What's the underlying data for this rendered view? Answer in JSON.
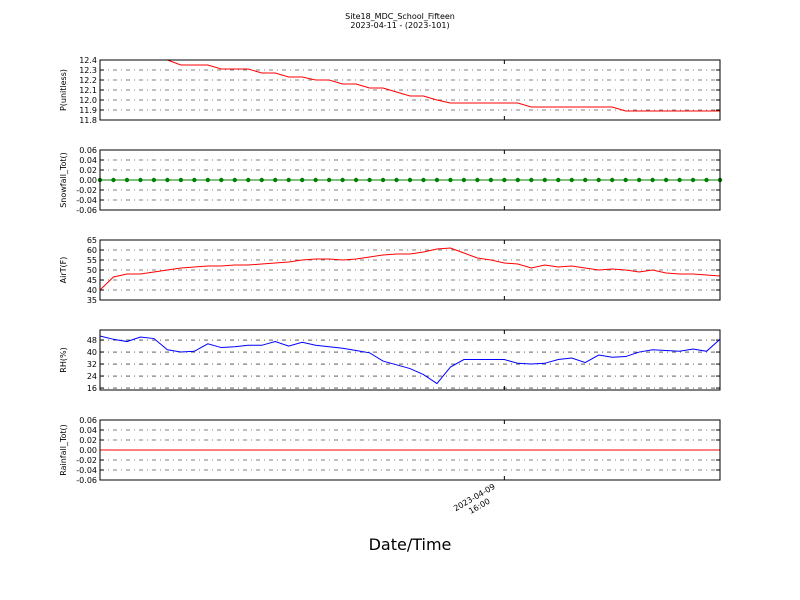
{
  "chart_data": [
    {
      "type": "line",
      "title": "Site18_MDC_School_Fifteen",
      "subtitle": "2023-04-11 - (2023-101)",
      "ylabel": "P(unitless)",
      "color": "#ff0000",
      "values": [
        12.4,
        12.4,
        12.4,
        12.4,
        12.4,
        12.4,
        12.35,
        12.35,
        12.35,
        12.31,
        12.31,
        12.31,
        12.27,
        12.27,
        12.23,
        12.23,
        12.2,
        12.2,
        12.16,
        12.16,
        12.12,
        12.12,
        12.08,
        12.04,
        12.04,
        12.0,
        11.97,
        11.97,
        11.97,
        11.97,
        11.97,
        11.97,
        11.93,
        11.93,
        11.93,
        11.93,
        11.93,
        11.93,
        11.93,
        11.89,
        11.89,
        11.89,
        11.89,
        11.89,
        11.89,
        11.89,
        11.89
      ],
      "xlim": [
        0,
        46
      ],
      "ylim": [
        11.8,
        12.4
      ],
      "yticks": [
        11.8,
        11.9,
        {
          "value": 12,
          "label": "12.0"
        },
        12.1,
        12.2,
        12.3,
        12.4
      ],
      "grid": true
    },
    {
      "type": "line",
      "ylabel": "Snowfall_Tot()",
      "color": "#008000",
      "markers": true,
      "values": [
        0,
        0,
        0,
        0,
        0,
        0,
        0,
        0,
        0,
        0,
        0,
        0,
        0,
        0,
        0,
        0,
        0,
        0,
        0,
        0,
        0,
        0,
        0,
        0,
        0,
        0,
        0,
        0,
        0,
        0,
        0,
        0,
        0,
        0,
        0,
        0,
        0,
        0,
        0,
        0,
        0,
        0,
        0,
        0,
        0,
        0,
        0
      ],
      "xlim": [
        0,
        46
      ],
      "ylim": [
        -0.06,
        0.06
      ],
      "yticks": [
        -0.06,
        -0.04,
        -0.02,
        {
          "value": 0,
          "label": "0.00"
        },
        0.02,
        0.04,
        0.06
      ],
      "grid": true
    },
    {
      "type": "line",
      "ylabel": "AirT(F)",
      "color": "#ff0000",
      "values": [
        40,
        46.5,
        48,
        48,
        49,
        50,
        51,
        51.5,
        52,
        52,
        52.5,
        52.5,
        53,
        53.5,
        54,
        55,
        55.5,
        55.5,
        55,
        55.5,
        56.5,
        57.5,
        58,
        58,
        59,
        60.5,
        61,
        58.5,
        56,
        55,
        53.5,
        53,
        51,
        52.5,
        51.5,
        52,
        51,
        50,
        50.5,
        50,
        49,
        50,
        48.5,
        48,
        48,
        47.5,
        47
      ],
      "xlim": [
        0,
        46
      ],
      "ylim": [
        35,
        65
      ],
      "yticks": [
        35,
        40,
        45,
        50,
        55,
        60,
        65
      ],
      "grid": true
    },
    {
      "type": "line",
      "ylabel": "RH(%)",
      "color": "#0000ff",
      "values": [
        50.7,
        48.5,
        47,
        50,
        49,
        41.5,
        40,
        40.5,
        45.5,
        43,
        43.5,
        44.5,
        44.5,
        47,
        44,
        46.5,
        44.5,
        43.5,
        42.5,
        41,
        39.5,
        34,
        31.5,
        29,
        25,
        19,
        30,
        35,
        35,
        35,
        35,
        32.5,
        32,
        32.5,
        35,
        36,
        33,
        38,
        36.5,
        37,
        40,
        41.5,
        41,
        40.5,
        42,
        40.5,
        48.5
      ],
      "xlim": [
        0,
        46
      ],
      "ylim": [
        14.7,
        54.7
      ],
      "yticks": [
        16,
        24,
        32,
        40,
        48
      ],
      "grid": true
    },
    {
      "type": "line",
      "ylabel": "Rainfall_Tot()",
      "color": "#ff0000",
      "values": [
        0,
        0,
        0,
        0,
        0,
        0,
        0,
        0,
        0,
        0,
        0,
        0,
        0,
        0,
        0,
        0,
        0,
        0,
        0,
        0,
        0,
        0,
        0,
        0,
        0,
        0,
        0,
        0,
        0,
        0,
        0,
        0,
        0,
        0,
        0,
        0,
        0,
        0,
        0,
        0,
        0,
        0,
        0,
        0,
        0,
        0,
        0
      ],
      "xlim": [
        0,
        46
      ],
      "ylim": [
        -0.06,
        0.06
      ],
      "yticks": [
        -0.06,
        -0.04,
        -0.02,
        {
          "value": 0,
          "label": "0.00"
        },
        0.02,
        0.04,
        0.06
      ],
      "grid": true,
      "xlabel": "Date/Time",
      "xticks": [
        {
          "value": 30,
          "label": "2023-04-09\n16:00"
        }
      ]
    }
  ]
}
